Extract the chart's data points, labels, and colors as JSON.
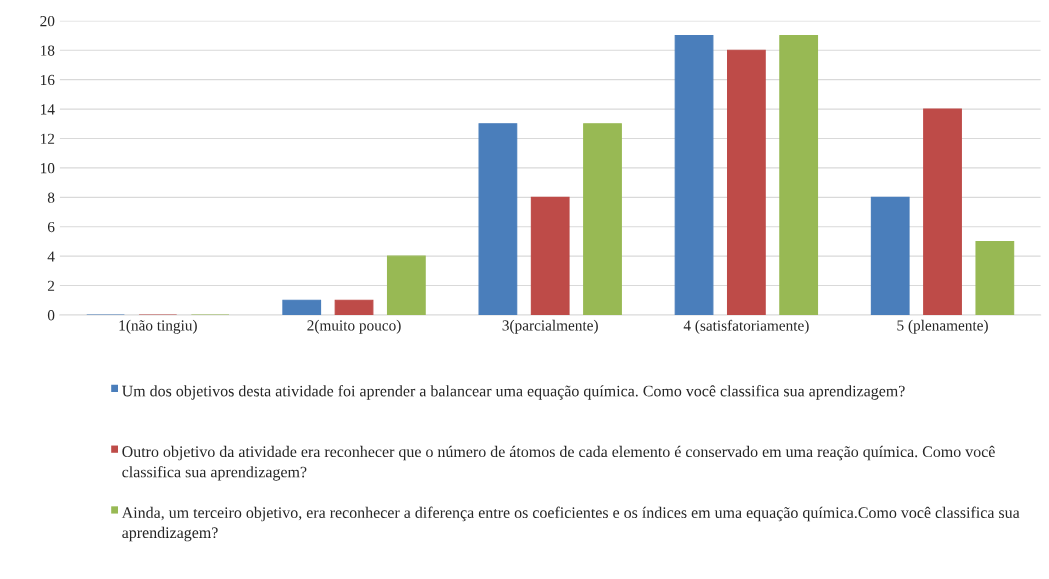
{
  "chart_data": {
    "type": "bar",
    "categories": [
      "1(não tingiu)",
      "2(muito pouco)",
      "3(parcialmente)",
      "4 (satisfatoriamente)",
      "5 (plenamente)"
    ],
    "series": [
      {
        "name": "Um dos objetivos desta atividade foi aprender a balancear uma equação química. Como você classifica sua aprendizagem?",
        "color": "#4a7ebb",
        "values": [
          0,
          1,
          13,
          19,
          8
        ]
      },
      {
        "name": "Outro objetivo da atividade era reconhecer que o número de átomos de cada elemento é conservado em uma reação química. Como você classifica sua aprendizagem?",
        "color": "#be4b48",
        "values": [
          0,
          1,
          8,
          18,
          14
        ]
      },
      {
        "name": "Ainda, um terceiro objetivo, era reconhecer a diferença entre os coeficientes e os índices em uma equação química.Como você classifica sua aprendizagem?",
        "color": "#98b954",
        "values": [
          0,
          4,
          13,
          19,
          5
        ]
      }
    ],
    "ylim": [
      0,
      20
    ],
    "yticks": [
      0,
      2,
      4,
      6,
      8,
      10,
      12,
      14,
      16,
      18,
      20
    ],
    "grid": "y",
    "legend": "bottom"
  }
}
